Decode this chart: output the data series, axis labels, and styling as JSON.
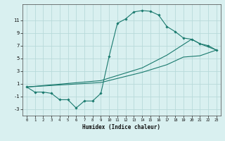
{
  "xlabel": "Humidex (Indice chaleur)",
  "bg_color": "#d9f0f0",
  "grid_color": "#b8dada",
  "line_color": "#1a7a6e",
  "marker_color": "#1a7a6e",
  "xlim": [
    -0.5,
    23.5
  ],
  "ylim": [
    -4.0,
    13.5
  ],
  "yticks": [
    -3,
    -1,
    1,
    3,
    5,
    7,
    9,
    11
  ],
  "xticks": [
    0,
    1,
    2,
    3,
    4,
    5,
    6,
    7,
    8,
    9,
    10,
    11,
    12,
    13,
    14,
    15,
    16,
    17,
    18,
    19,
    20,
    21,
    22,
    23
  ],
  "line1_x": [
    0,
    1,
    2,
    3,
    4,
    5,
    6,
    7,
    8,
    9,
    10,
    11,
    12,
    13,
    14,
    15,
    16,
    17,
    18,
    19,
    20,
    21,
    22,
    23
  ],
  "line1_y": [
    0.5,
    -0.3,
    -0.3,
    -0.5,
    -1.5,
    -1.5,
    -2.8,
    -1.7,
    -1.7,
    -0.5,
    5.3,
    10.5,
    11.2,
    12.3,
    12.5,
    12.4,
    11.8,
    10.0,
    9.2,
    8.2,
    8.0,
    7.3,
    7.0,
    6.3
  ],
  "line2_x": [
    0,
    9,
    14,
    17,
    19,
    21,
    23
  ],
  "line2_y": [
    0.5,
    1.2,
    2.8,
    4.0,
    5.2,
    5.4,
    6.3
  ],
  "line3_x": [
    0,
    9,
    14,
    17,
    20,
    21,
    23
  ],
  "line3_y": [
    0.5,
    1.5,
    3.5,
    5.5,
    8.0,
    7.3,
    6.3
  ]
}
